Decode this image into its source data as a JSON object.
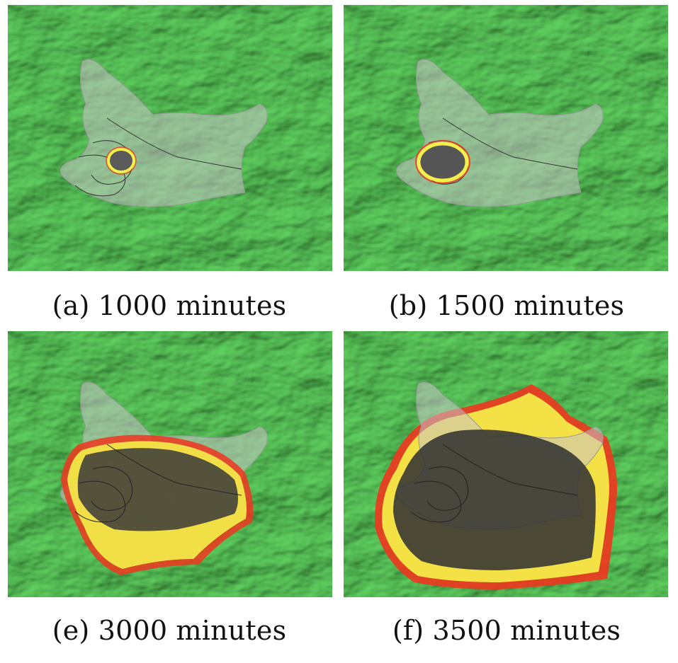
{
  "figure": {
    "panels": [
      {
        "id": "a",
        "caption": "(a) 1000 minutes",
        "stage": 1
      },
      {
        "id": "b",
        "caption": "(b) 1500 minutes",
        "stage": 2
      },
      {
        "id": "e",
        "caption": "(e) 3000 minutes",
        "stage": 3
      },
      {
        "id": "f",
        "caption": "(f) 3500 minutes",
        "stage": 4
      }
    ],
    "colors": {
      "terrain_light": "#3cb63a",
      "terrain_dark": "#0e3d10",
      "region_overlay": "#c9c3c9",
      "burned": "#3a3a3a",
      "front_yellow": "#f4ef4a",
      "front_red": "#f0361e"
    }
  }
}
